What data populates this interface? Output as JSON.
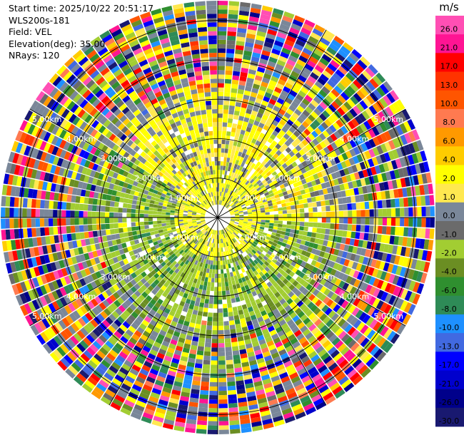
{
  "header": {
    "start_time": "Start time: 2025/10/22 20:51:17",
    "instrument": "WLS200s-181",
    "field": "Field: VEL",
    "elevation": "Elevation(deg): 35.00",
    "nrays": "NRays: 120"
  },
  "chart_data": {
    "type": "heatmap",
    "projection": "polar-ppi",
    "field": "VEL",
    "units": "m/s",
    "n_rays": 120,
    "n_range_gates": 50,
    "range_rings_km": [
      1,
      2,
      3,
      4,
      5
    ],
    "range_ring_labels": [
      "1.00km",
      "2.00km",
      "3.00km",
      "4.00km",
      "5.00km"
    ],
    "spoke_angles_deg": [
      0,
      30,
      60,
      90,
      120,
      150,
      180,
      210,
      240,
      270,
      300,
      330
    ],
    "colorbar": {
      "units_label": "m/s",
      "ticks": [
        "26.0",
        "21.0",
        "17.0",
        "13.0",
        "10.0",
        "8.0",
        "6.0",
        "4.0",
        "2.0",
        "1.0",
        "0.0",
        "-1.0",
        "-2.0",
        "-4.0",
        "-6.0",
        "-8.0",
        "-10.0",
        "-13.0",
        "-17.0",
        "-21.0",
        "-26.0",
        "-30.0"
      ],
      "colors": [
        "#ff4fb4",
        "#ff1493",
        "#ff0000",
        "#ff3300",
        "#ff5500",
        "#ff7a50",
        "#ff9900",
        "#ffcc00",
        "#ffff00",
        "#ffe850",
        "#7a8799",
        "#6b6b6b",
        "#a2cd32",
        "#6b8e23",
        "#2f8f2f",
        "#2e8b57",
        "#1e90ff",
        "#4169e1",
        "#0000ff",
        "#0000cd",
        "#00008b",
        "#191970"
      ]
    }
  }
}
